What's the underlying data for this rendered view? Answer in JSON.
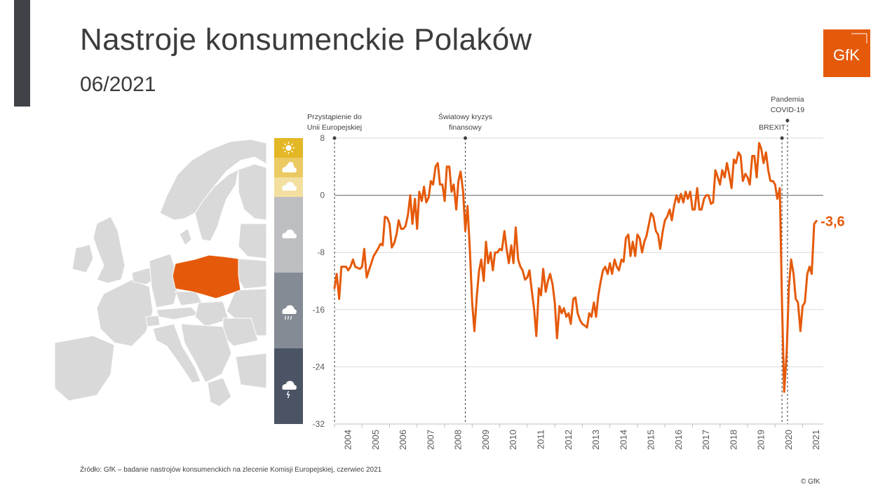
{
  "header": {
    "title": "Nastroje konsumenckie Polaków",
    "subtitle": "06/2021"
  },
  "logo": {
    "text": "GfK",
    "color": "#e55a0a"
  },
  "map": {
    "highlight_color": "#e55a0a",
    "base_color": "#d9d9d9"
  },
  "mood_scale": [
    {
      "icon": "sun-icon",
      "color": "#e3b726"
    },
    {
      "icon": "sun-cloud-icon",
      "color": "#ecca63"
    },
    {
      "icon": "cloud-light-icon",
      "color": "#f3e0a0"
    },
    {
      "icon": "cloud-icon",
      "color": "#bdbec1"
    },
    {
      "icon": "rain-cloud-icon",
      "color": "#858b95"
    },
    {
      "icon": "storm-cloud-icon",
      "color": "#4a5465"
    }
  ],
  "chart_data": {
    "type": "line",
    "title": "",
    "xlabel": "",
    "ylabel": "",
    "ylim": [
      -32,
      8
    ],
    "yticks": [
      "8",
      "0",
      "-8",
      "-16",
      "-24",
      "-32"
    ],
    "xticks": [
      "2004",
      "2005",
      "2006",
      "2007",
      "2008",
      "2009",
      "2010",
      "2011",
      "2012",
      "2013",
      "2014",
      "2015",
      "2016",
      "2017",
      "2018",
      "2019",
      "2020",
      "2021"
    ],
    "line_color": "#e55a0a",
    "final_label": "-3,6",
    "annotations": [
      {
        "x": 2004.0,
        "line1": "Przystąpienie do",
        "line2": "Unii Europejskiej"
      },
      {
        "x": 2008.75,
        "line1": "Światowy kryzys",
        "line2": "finansowy"
      },
      {
        "x": 2020.25,
        "line1": "",
        "line2": "BREXIT"
      },
      {
        "x": 2020.45,
        "line1": "Pandemia",
        "line2": "COVID-19"
      }
    ],
    "series": [
      {
        "points": [
          [
            2004.0,
            -13.0
          ],
          [
            2004.08,
            -11.0
          ],
          [
            2004.17,
            -14.5
          ],
          [
            2004.25,
            -10.0
          ],
          [
            2004.42,
            -10.0
          ],
          [
            2004.5,
            -10.5
          ],
          [
            2004.58,
            -10.0
          ],
          [
            2004.67,
            -9.0
          ],
          [
            2004.75,
            -10.0
          ],
          [
            2004.92,
            -10.3
          ],
          [
            2005.0,
            -10.0
          ],
          [
            2005.08,
            -7.5
          ],
          [
            2005.17,
            -11.5
          ],
          [
            2005.25,
            -10.5
          ],
          [
            2005.42,
            -8.5
          ],
          [
            2005.58,
            -7.5
          ],
          [
            2005.67,
            -6.8
          ],
          [
            2005.75,
            -7.0
          ],
          [
            2005.83,
            -3.0
          ],
          [
            2005.92,
            -3.2
          ],
          [
            2006.0,
            -4.0
          ],
          [
            2006.08,
            -7.3
          ],
          [
            2006.17,
            -6.7
          ],
          [
            2006.25,
            -5.5
          ],
          [
            2006.33,
            -3.5
          ],
          [
            2006.42,
            -4.7
          ],
          [
            2006.5,
            -4.7
          ],
          [
            2006.58,
            -4.3
          ],
          [
            2006.67,
            -2.7
          ],
          [
            2006.75,
            0.0
          ],
          [
            2006.83,
            -4.0
          ],
          [
            2006.92,
            -0.5
          ],
          [
            2007.0,
            -4.7
          ],
          [
            2007.08,
            0.5
          ],
          [
            2007.17,
            -0.8
          ],
          [
            2007.25,
            1.2
          ],
          [
            2007.33,
            -1.0
          ],
          [
            2007.42,
            -0.3
          ],
          [
            2007.5,
            2.0
          ],
          [
            2007.58,
            1.5
          ],
          [
            2007.67,
            4.0
          ],
          [
            2007.75,
            4.5
          ],
          [
            2007.83,
            1.5
          ],
          [
            2007.92,
            1.5
          ],
          [
            2008.0,
            -0.8
          ],
          [
            2008.08,
            4.0
          ],
          [
            2008.17,
            4.0
          ],
          [
            2008.25,
            0.5
          ],
          [
            2008.33,
            1.5
          ],
          [
            2008.42,
            -2.0
          ],
          [
            2008.5,
            2.0
          ],
          [
            2008.58,
            3.3
          ],
          [
            2008.67,
            0.5
          ],
          [
            2008.75,
            -5.0
          ],
          [
            2008.83,
            -1.5
          ],
          [
            2008.92,
            -8.0
          ],
          [
            2009.0,
            -15.0
          ],
          [
            2009.08,
            -19.0
          ],
          [
            2009.17,
            -14.0
          ],
          [
            2009.25,
            -10.5
          ],
          [
            2009.33,
            -9.0
          ],
          [
            2009.42,
            -12.0
          ],
          [
            2009.5,
            -6.5
          ],
          [
            2009.58,
            -9.5
          ],
          [
            2009.67,
            -8.0
          ],
          [
            2009.75,
            -10.5
          ],
          [
            2009.83,
            -8.0
          ],
          [
            2009.92,
            -8.0
          ],
          [
            2010.0,
            -7.5
          ],
          [
            2010.08,
            -7.7
          ],
          [
            2010.17,
            -5.0
          ],
          [
            2010.25,
            -7.5
          ],
          [
            2010.33,
            -9.5
          ],
          [
            2010.42,
            -7.0
          ],
          [
            2010.5,
            -9.5
          ],
          [
            2010.58,
            -4.5
          ],
          [
            2010.67,
            -9.0
          ],
          [
            2010.75,
            -10.0
          ],
          [
            2010.83,
            -10.5
          ],
          [
            2010.92,
            -11.8
          ],
          [
            2011.0,
            -11.5
          ],
          [
            2011.08,
            -10.5
          ],
          [
            2011.17,
            -13.5
          ],
          [
            2011.25,
            -16.0
          ],
          [
            2011.33,
            -19.7
          ],
          [
            2011.42,
            -13.0
          ],
          [
            2011.5,
            -14.0
          ],
          [
            2011.58,
            -10.3
          ],
          [
            2011.67,
            -13.5
          ],
          [
            2011.75,
            -12.0
          ],
          [
            2011.83,
            -11.0
          ],
          [
            2011.92,
            -12.5
          ],
          [
            2012.0,
            -15.0
          ],
          [
            2012.08,
            -20.0
          ],
          [
            2012.17,
            -15.5
          ],
          [
            2012.25,
            -16.5
          ],
          [
            2012.33,
            -15.8
          ],
          [
            2012.42,
            -17.0
          ],
          [
            2012.5,
            -16.5
          ],
          [
            2012.58,
            -18.0
          ],
          [
            2012.67,
            -14.5
          ],
          [
            2012.75,
            -14.3
          ],
          [
            2012.83,
            -16.5
          ],
          [
            2012.92,
            -17.5
          ],
          [
            2013.0,
            -18.0
          ],
          [
            2013.08,
            -18.2
          ],
          [
            2013.17,
            -18.5
          ],
          [
            2013.25,
            -16.5
          ],
          [
            2013.33,
            -17.0
          ],
          [
            2013.42,
            -15.0
          ],
          [
            2013.5,
            -17.0
          ],
          [
            2013.58,
            -14.0
          ],
          [
            2013.67,
            -12.0
          ],
          [
            2013.75,
            -10.5
          ],
          [
            2013.83,
            -10.0
          ],
          [
            2013.92,
            -11.0
          ],
          [
            2014.0,
            -9.5
          ],
          [
            2014.08,
            -11.0
          ],
          [
            2014.17,
            -9.0
          ],
          [
            2014.25,
            -10.0
          ],
          [
            2014.33,
            -10.5
          ],
          [
            2014.42,
            -9.0
          ],
          [
            2014.5,
            -9.3
          ],
          [
            2014.58,
            -6.0
          ],
          [
            2014.67,
            -5.5
          ],
          [
            2014.75,
            -8.5
          ],
          [
            2014.83,
            -6.5
          ],
          [
            2014.92,
            -8.5
          ],
          [
            2015.0,
            -5.5
          ],
          [
            2015.08,
            -6.0
          ],
          [
            2015.17,
            -8.0
          ],
          [
            2015.25,
            -6.5
          ],
          [
            2015.33,
            -5.7
          ],
          [
            2015.42,
            -4.0
          ],
          [
            2015.5,
            -2.5
          ],
          [
            2015.58,
            -3.0
          ],
          [
            2015.67,
            -5.0
          ],
          [
            2015.75,
            -5.5
          ],
          [
            2015.83,
            -7.5
          ],
          [
            2015.92,
            -5.0
          ],
          [
            2016.0,
            -3.5
          ],
          [
            2016.08,
            -3.0
          ],
          [
            2016.17,
            -2.0
          ],
          [
            2016.25,
            -3.5
          ],
          [
            2016.33,
            -1.5
          ],
          [
            2016.42,
            0.0
          ],
          [
            2016.5,
            -1.0
          ],
          [
            2016.58,
            0.2
          ],
          [
            2016.67,
            -1.0
          ],
          [
            2016.75,
            0.5
          ],
          [
            2016.83,
            -0.5
          ],
          [
            2016.92,
            0.5
          ],
          [
            2017.0,
            -2.0
          ],
          [
            2017.08,
            -2.0
          ],
          [
            2017.17,
            1.0
          ],
          [
            2017.25,
            -2.0
          ],
          [
            2017.33,
            -2.0
          ],
          [
            2017.42,
            -0.5
          ],
          [
            2017.5,
            0.0
          ],
          [
            2017.58,
            0.0
          ],
          [
            2017.67,
            -1.2
          ],
          [
            2017.75,
            -1.0
          ],
          [
            2017.83,
            3.5
          ],
          [
            2017.92,
            2.5
          ],
          [
            2018.0,
            1.5
          ],
          [
            2018.08,
            3.5
          ],
          [
            2018.17,
            2.5
          ],
          [
            2018.25,
            4.5
          ],
          [
            2018.33,
            3.0
          ],
          [
            2018.42,
            1.0
          ],
          [
            2018.5,
            5.0
          ],
          [
            2018.58,
            4.5
          ],
          [
            2018.67,
            6.0
          ],
          [
            2018.75,
            5.5
          ],
          [
            2018.83,
            2.0
          ],
          [
            2018.92,
            3.0
          ],
          [
            2019.0,
            2.5
          ],
          [
            2019.08,
            1.5
          ],
          [
            2019.17,
            5.5
          ],
          [
            2019.25,
            5.5
          ],
          [
            2019.33,
            2.5
          ],
          [
            2019.42,
            7.3
          ],
          [
            2019.5,
            6.5
          ],
          [
            2019.58,
            4.5
          ],
          [
            2019.67,
            6.0
          ],
          [
            2019.75,
            3.5
          ],
          [
            2019.83,
            2.0
          ],
          [
            2019.92,
            2.0
          ],
          [
            2020.0,
            1.5
          ],
          [
            2020.08,
            -0.5
          ],
          [
            2020.17,
            1.0
          ],
          [
            2020.25,
            -15.0
          ],
          [
            2020.33,
            -27.5
          ],
          [
            2020.42,
            -22.0
          ],
          [
            2020.5,
            -13.0
          ],
          [
            2020.58,
            -9.0
          ],
          [
            2020.67,
            -11.0
          ],
          [
            2020.75,
            -14.5
          ],
          [
            2020.83,
            -15.0
          ],
          [
            2020.92,
            -19.0
          ],
          [
            2021.0,
            -15.5
          ],
          [
            2021.08,
            -15.0
          ],
          [
            2021.17,
            -11.0
          ],
          [
            2021.25,
            -10.0
          ],
          [
            2021.33,
            -11.0
          ],
          [
            2021.42,
            -4.0
          ],
          [
            2021.5,
            -3.6
          ]
        ]
      }
    ]
  },
  "footer": {
    "source": "Źródło: GfK – badanie nastrojów konsumenckich na zlecenie Komisji Europejskiej, czerwiec 2021",
    "copyright": "© GfK"
  }
}
